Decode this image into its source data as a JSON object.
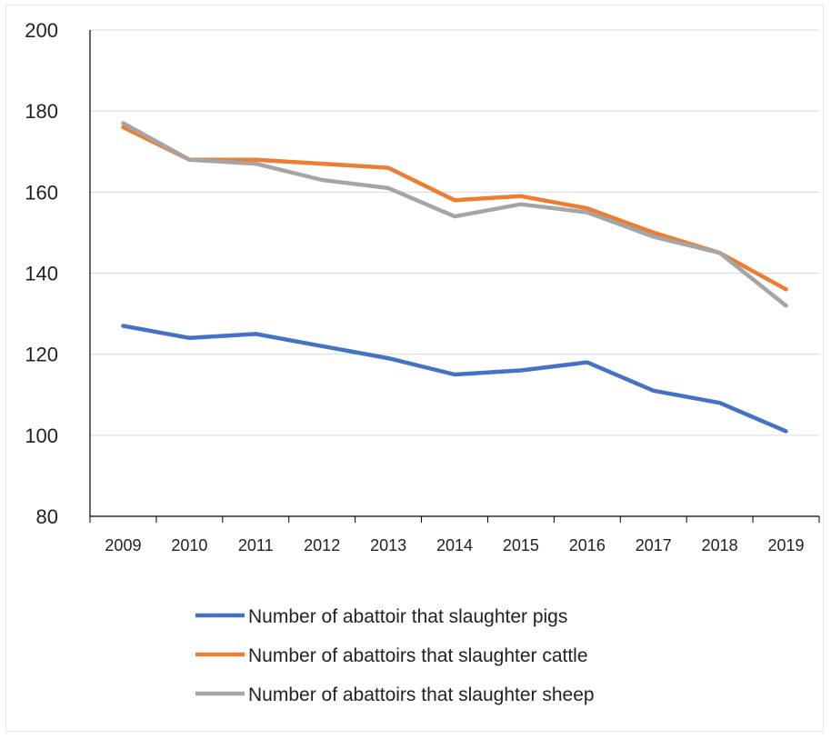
{
  "chart_data": {
    "type": "line",
    "categories": [
      "2009",
      "2010",
      "2011",
      "2012",
      "2013",
      "2014",
      "2015",
      "2016",
      "2017",
      "2018",
      "2019"
    ],
    "series": [
      {
        "name": "Number of abattoir that slaughter pigs",
        "color": "#4472C4",
        "values": [
          127,
          124,
          125,
          122,
          119,
          115,
          116,
          118,
          111,
          108,
          101
        ]
      },
      {
        "name": "Number of abattoirs that slaughter cattle",
        "color": "#ED7D31",
        "values": [
          176,
          168,
          168,
          167,
          166,
          158,
          159,
          156,
          150,
          145,
          136
        ]
      },
      {
        "name": "Number of abattoirs that slaughter sheep",
        "color": "#A5A5A5",
        "values": [
          177,
          168,
          167,
          163,
          161,
          154,
          157,
          155,
          149,
          145,
          132
        ]
      }
    ],
    "yticks": [
      "80",
      "100",
      "120",
      "140",
      "160",
      "180",
      "200"
    ],
    "ylim": [
      80,
      200
    ],
    "grid": true,
    "legend_position": "bottom",
    "title": "",
    "xlabel": "",
    "ylabel": ""
  }
}
